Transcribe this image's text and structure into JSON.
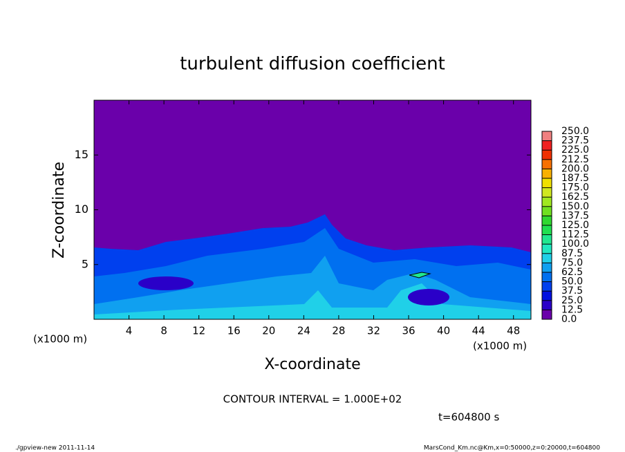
{
  "chart_data": {
    "type": "contour",
    "title": "turbulent diffusion coefficient",
    "xlabel": "X-coordinate",
    "ylabel": "Z-coordinate",
    "unit_label": "(x1000 m)",
    "xlim": [
      0,
      50
    ],
    "xticks": [
      4,
      8,
      12,
      16,
      20,
      24,
      28,
      32,
      36,
      40,
      44,
      48
    ],
    "ylim": [
      0,
      20
    ],
    "yticks": [
      5,
      10,
      15
    ],
    "colorbar": {
      "ticks": [
        {
          "value": 0,
          "label": "0.0"
        },
        {
          "value": 12.5,
          "label": "12.5"
        },
        {
          "value": 25,
          "label": "25.0"
        },
        {
          "value": 37.5,
          "label": "37.5"
        },
        {
          "value": 50,
          "label": "50.0"
        },
        {
          "value": 62.5,
          "label": "62.5"
        },
        {
          "value": 75,
          "label": "75.0"
        },
        {
          "value": 87.5,
          "label": "87.5"
        },
        {
          "value": 100,
          "label": "100.0"
        },
        {
          "value": 112.5,
          "label": "112.5"
        },
        {
          "value": 125,
          "label": "125.0"
        },
        {
          "value": 137.5,
          "label": "137.5"
        },
        {
          "value": 150,
          "label": "150.0"
        },
        {
          "value": 162.5,
          "label": "162.5"
        },
        {
          "value": 175,
          "label": "175.0"
        },
        {
          "value": 187.5,
          "label": "187.5"
        },
        {
          "value": 200,
          "label": "200.0"
        },
        {
          "value": 212.5,
          "label": "212.5"
        },
        {
          "value": 225,
          "label": "225.0"
        },
        {
          "value": 237.5,
          "label": "237.5"
        },
        {
          "value": 250,
          "label": "250.0"
        }
      ],
      "colors": [
        "#6a00aa",
        "#2a00c8",
        "#0010e0",
        "#0040ee",
        "#0070f0",
        "#10a0f0",
        "#20d0e8",
        "#20e8c0",
        "#20e890",
        "#20e050",
        "#30d830",
        "#70e020",
        "#a0e820",
        "#d0e820",
        "#f0e000",
        "#f8b000",
        "#f87000",
        "#f03000",
        "#f02020",
        "#f08080"
      ]
    },
    "annotations": [
      "CONTOUR INTERVAL = 1.000E+02",
      "t=604800 s"
    ],
    "footer_left": "./gpview-new  2011-11-14",
    "footer_right": "MarsCond_Km.nc@Km,x=0:50000,z=0:20000,t=604800"
  }
}
